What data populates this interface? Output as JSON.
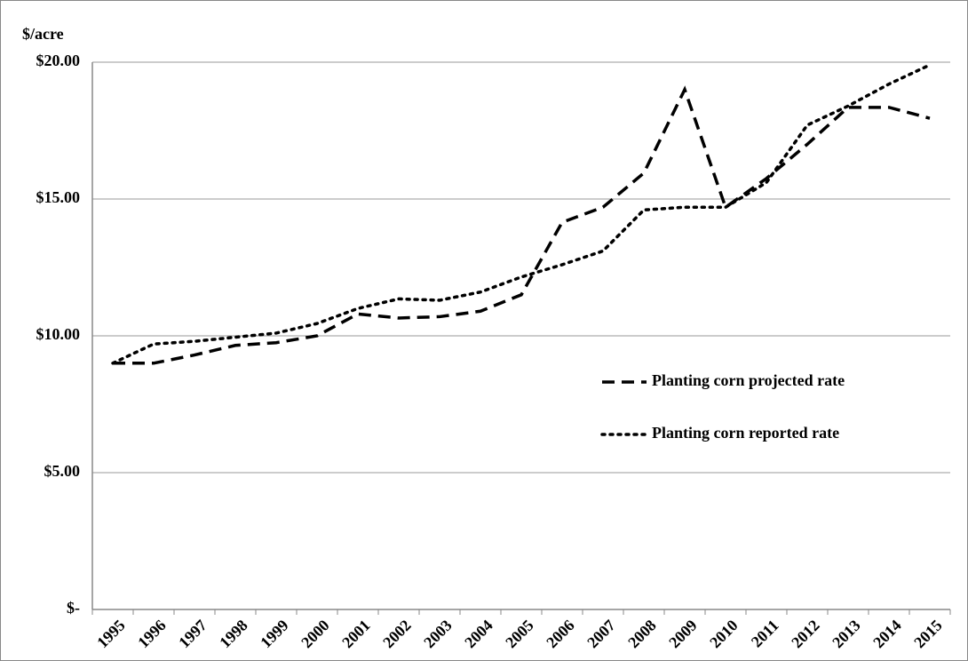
{
  "chart_data": {
    "type": "line",
    "y_axis_label": "$/acre",
    "categories": [
      "1995",
      "1996",
      "1997",
      "1998",
      "1999",
      "2000",
      "2001",
      "2002",
      "2003",
      "2004",
      "2005",
      "2006",
      "2007",
      "2008",
      "2009",
      "2010",
      "2011",
      "2012",
      "2013",
      "2014",
      "2015"
    ],
    "series": [
      {
        "name": "Planting corn projected rate",
        "color": "#000000",
        "dash": "dashed",
        "values": [
          9.0,
          9.0,
          9.3,
          9.65,
          9.75,
          10.0,
          10.8,
          10.65,
          10.7,
          10.9,
          11.5,
          14.15,
          14.7,
          15.95,
          19.0,
          14.7,
          15.75,
          17.0,
          18.35,
          18.35,
          17.95
        ]
      },
      {
        "name": "Planting corn reported rate",
        "color": "#000000",
        "dash": "dotted",
        "values": [
          9.0,
          9.7,
          9.8,
          9.95,
          10.1,
          10.45,
          11.0,
          11.35,
          11.3,
          11.6,
          12.15,
          12.6,
          13.1,
          14.6,
          14.7,
          14.7,
          15.6,
          17.7,
          18.4,
          19.2,
          19.9
        ]
      }
    ],
    "ylim": [
      0,
      20
    ],
    "yticks": [
      {
        "value": 0,
        "label": "$-"
      },
      {
        "value": 5,
        "label": "$5.00"
      },
      {
        "value": 10,
        "label": "$10.00"
      },
      {
        "value": 15,
        "label": "$15.00"
      },
      {
        "value": 20,
        "label": "$20.00"
      }
    ],
    "grid": true,
    "legend": "right"
  }
}
